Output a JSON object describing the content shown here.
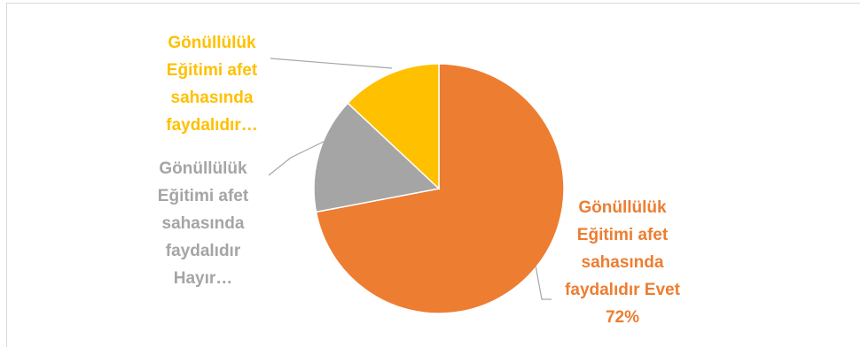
{
  "chart_data": {
    "type": "pie",
    "title": "",
    "slices": [
      {
        "label_lines": [
          "Gönüllülük",
          "Eğitimi afet",
          "sahasında",
          "faydalıdır Evet",
          "72%"
        ],
        "value": 72,
        "color": "#ED7D31"
      },
      {
        "label_lines": [
          "Gönüllülük",
          "Eğitimi afet",
          "sahasında",
          "faydalıdır",
          "Hayır…"
        ],
        "value": 15,
        "color": "#A5A5A5"
      },
      {
        "label_lines": [
          "Gönüllülük",
          "Eğitimi afet",
          "sahasında",
          "faydalıdır…"
        ],
        "value": 13,
        "color": "#FFC000"
      }
    ],
    "leader_line_color": "#A6A6A6",
    "legend": "none"
  }
}
